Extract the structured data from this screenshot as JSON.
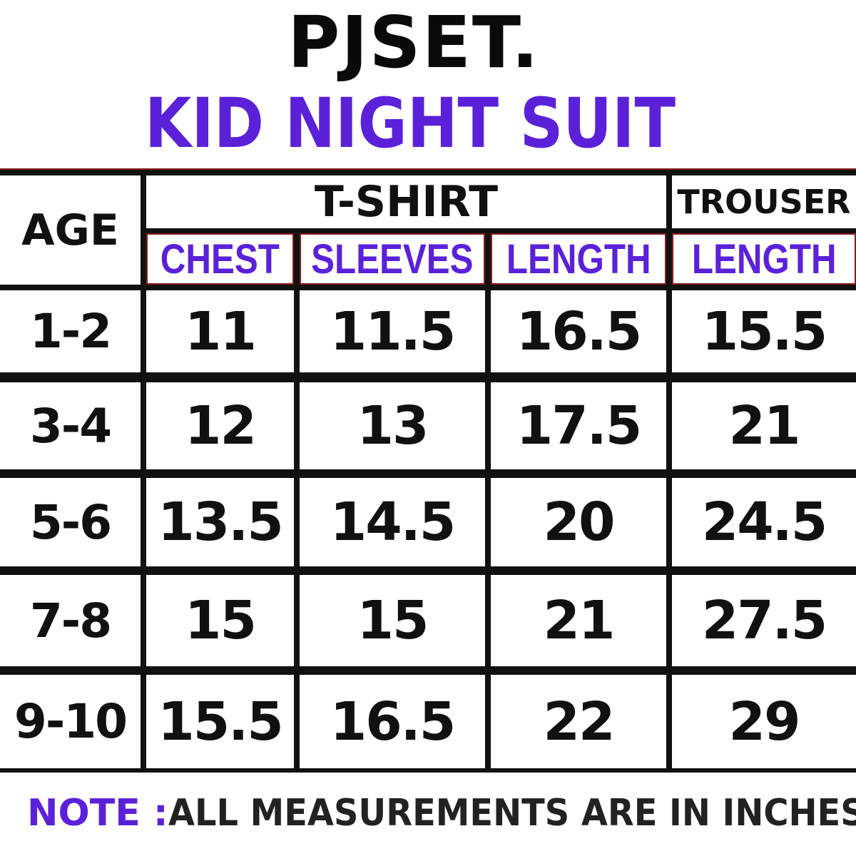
{
  "brand": "PJSET.",
  "title": "KID NIGHT SUIT",
  "headers": {
    "age": "AGE",
    "tshirt": "T-SHIRT",
    "trouser": "TROUSER",
    "chest": "CHEST",
    "sleeves": "SLEEVES",
    "length": "LENGTH",
    "trouser_length": "LENGTH"
  },
  "colors": {
    "accent": "#5b21d9",
    "text": "#111111"
  },
  "rows": [
    {
      "age": "1-2",
      "chest": "11",
      "sleeves": "11.5",
      "length": "16.5",
      "trouser_length": "15.5"
    },
    {
      "age": "3-4",
      "chest": "12",
      "sleeves": "13",
      "length": "17.5",
      "trouser_length": "21"
    },
    {
      "age": "5-6",
      "chest": "13.5",
      "sleeves": "14.5",
      "length": "20",
      "trouser_length": "24.5"
    },
    {
      "age": "7-8",
      "chest": "15",
      "sleeves": "15",
      "length": "21",
      "trouser_length": "27.5"
    },
    {
      "age": "9-10",
      "chest": "15.5",
      "sleeves": "16.5",
      "length": "22",
      "trouser_length": "29"
    }
  ],
  "note": {
    "label": "NOTE :",
    "text": " ALL MEASUREMENTS ARE IN INCHES"
  }
}
